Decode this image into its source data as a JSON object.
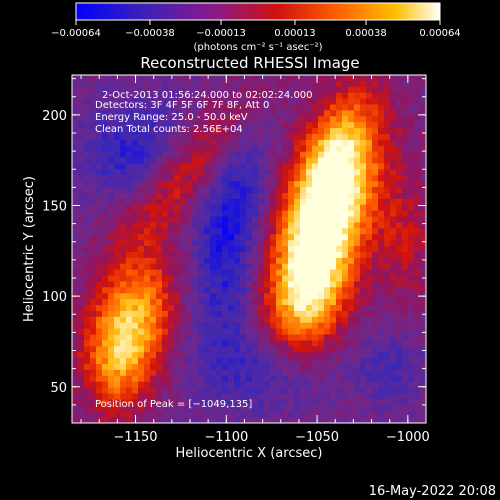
{
  "chart_data": {
    "type": "heatmap",
    "title": "Reconstructed RHESSI Image",
    "xlabel": "Heliocentric X (arcsec)",
    "ylabel": "Heliocentric Y (arcsec)",
    "xlim": [
      -1185,
      -990
    ],
    "ylim": [
      30,
      222
    ],
    "x_ticks": [
      -1150,
      -1100,
      -1050,
      -1000
    ],
    "x_tick_labels": [
      "−1150",
      "−1100",
      "−1050",
      "−1000"
    ],
    "y_ticks": [
      50,
      100,
      150,
      200
    ],
    "y_tick_labels": [
      "50",
      "100",
      "150",
      "200"
    ],
    "colorbar": {
      "colormap": "blue-purple-red-yellow-white",
      "range": [
        -0.00064,
        0.00064
      ],
      "ticks": [
        -0.00064,
        -0.00038,
        -0.00013,
        0.00013,
        0.00038,
        0.00064
      ],
      "tick_labels": [
        "−0.00064",
        "−0.00038",
        "−0.00013",
        "0.00013",
        "0.00038",
        "0.00064"
      ],
      "unit_label": "(photons cm⁻² s⁻¹ asec⁻²)"
    },
    "peak": [
      -1049,
      135
    ],
    "annotations": {
      "time_range": "2-Oct-2013 01:56:24.000 to 02:02:24.000",
      "detectors": "Detectors: 3F 4F 5F 6F 7F 8F, Att 0",
      "energy": "Energy Range: 25.0 - 50.0 keV",
      "clean": "Clean    Total counts: 2.56E+04",
      "peak_text": "Position of Peak = [−1049,135]"
    },
    "colors": {
      "background": "#000000",
      "text": "#ffffff",
      "colormap_stops": [
        "#1a1aff",
        "#4a2a9a",
        "#7a2a8a",
        "#c01010",
        "#ff5a00",
        "#ffb000",
        "#ffffc0"
      ]
    }
  },
  "footer": {
    "timestamp": "16-May-2022 20:08"
  }
}
